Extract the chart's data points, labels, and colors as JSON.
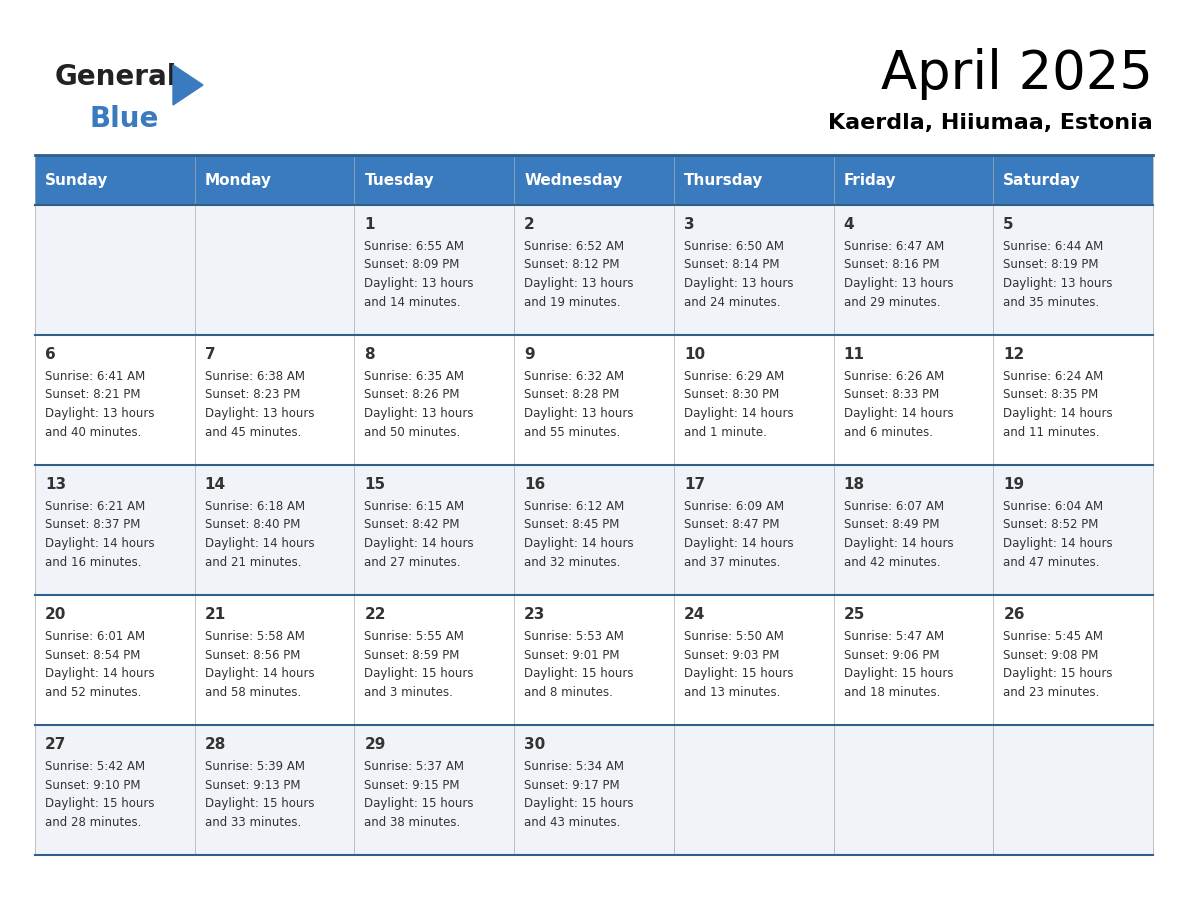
{
  "title": "April 2025",
  "subtitle": "Kaerdla, Hiiumaa, Estonia",
  "header_color": "#3a7bbf",
  "header_text_color": "#ffffff",
  "cell_bg_even": "#f0f4f8",
  "cell_bg_odd": "#ffffff",
  "border_color": "#2e5f8a",
  "text_color": "#333333",
  "logo_general_color": "#222222",
  "logo_blue_color": "#3a7bbf",
  "logo_triangle_color": "#3a7bbf",
  "days_of_week": [
    "Sunday",
    "Monday",
    "Tuesday",
    "Wednesday",
    "Thursday",
    "Friday",
    "Saturday"
  ],
  "calendar_data": [
    [
      "",
      "",
      "1\nSunrise: 6:55 AM\nSunset: 8:09 PM\nDaylight: 13 hours\nand 14 minutes.",
      "2\nSunrise: 6:52 AM\nSunset: 8:12 PM\nDaylight: 13 hours\nand 19 minutes.",
      "3\nSunrise: 6:50 AM\nSunset: 8:14 PM\nDaylight: 13 hours\nand 24 minutes.",
      "4\nSunrise: 6:47 AM\nSunset: 8:16 PM\nDaylight: 13 hours\nand 29 minutes.",
      "5\nSunrise: 6:44 AM\nSunset: 8:19 PM\nDaylight: 13 hours\nand 35 minutes."
    ],
    [
      "6\nSunrise: 6:41 AM\nSunset: 8:21 PM\nDaylight: 13 hours\nand 40 minutes.",
      "7\nSunrise: 6:38 AM\nSunset: 8:23 PM\nDaylight: 13 hours\nand 45 minutes.",
      "8\nSunrise: 6:35 AM\nSunset: 8:26 PM\nDaylight: 13 hours\nand 50 minutes.",
      "9\nSunrise: 6:32 AM\nSunset: 8:28 PM\nDaylight: 13 hours\nand 55 minutes.",
      "10\nSunrise: 6:29 AM\nSunset: 8:30 PM\nDaylight: 14 hours\nand 1 minute.",
      "11\nSunrise: 6:26 AM\nSunset: 8:33 PM\nDaylight: 14 hours\nand 6 minutes.",
      "12\nSunrise: 6:24 AM\nSunset: 8:35 PM\nDaylight: 14 hours\nand 11 minutes."
    ],
    [
      "13\nSunrise: 6:21 AM\nSunset: 8:37 PM\nDaylight: 14 hours\nand 16 minutes.",
      "14\nSunrise: 6:18 AM\nSunset: 8:40 PM\nDaylight: 14 hours\nand 21 minutes.",
      "15\nSunrise: 6:15 AM\nSunset: 8:42 PM\nDaylight: 14 hours\nand 27 minutes.",
      "16\nSunrise: 6:12 AM\nSunset: 8:45 PM\nDaylight: 14 hours\nand 32 minutes.",
      "17\nSunrise: 6:09 AM\nSunset: 8:47 PM\nDaylight: 14 hours\nand 37 minutes.",
      "18\nSunrise: 6:07 AM\nSunset: 8:49 PM\nDaylight: 14 hours\nand 42 minutes.",
      "19\nSunrise: 6:04 AM\nSunset: 8:52 PM\nDaylight: 14 hours\nand 47 minutes."
    ],
    [
      "20\nSunrise: 6:01 AM\nSunset: 8:54 PM\nDaylight: 14 hours\nand 52 minutes.",
      "21\nSunrise: 5:58 AM\nSunset: 8:56 PM\nDaylight: 14 hours\nand 58 minutes.",
      "22\nSunrise: 5:55 AM\nSunset: 8:59 PM\nDaylight: 15 hours\nand 3 minutes.",
      "23\nSunrise: 5:53 AM\nSunset: 9:01 PM\nDaylight: 15 hours\nand 8 minutes.",
      "24\nSunrise: 5:50 AM\nSunset: 9:03 PM\nDaylight: 15 hours\nand 13 minutes.",
      "25\nSunrise: 5:47 AM\nSunset: 9:06 PM\nDaylight: 15 hours\nand 18 minutes.",
      "26\nSunrise: 5:45 AM\nSunset: 9:08 PM\nDaylight: 15 hours\nand 23 minutes."
    ],
    [
      "27\nSunrise: 5:42 AM\nSunset: 9:10 PM\nDaylight: 15 hours\nand 28 minutes.",
      "28\nSunrise: 5:39 AM\nSunset: 9:13 PM\nDaylight: 15 hours\nand 33 minutes.",
      "29\nSunrise: 5:37 AM\nSunset: 9:15 PM\nDaylight: 15 hours\nand 38 minutes.",
      "30\nSunrise: 5:34 AM\nSunset: 9:17 PM\nDaylight: 15 hours\nand 43 minutes.",
      "",
      "",
      ""
    ]
  ],
  "fig_width": 11.88,
  "fig_height": 9.18,
  "dpi": 100
}
